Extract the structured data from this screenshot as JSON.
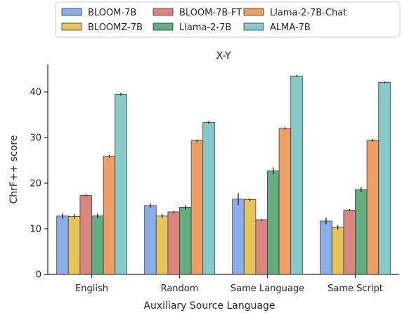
{
  "chart_data": {
    "type": "bar",
    "title": "X-Y",
    "xlabel": "Auxiliary Source Language",
    "ylabel": "ChrF++ score",
    "ylim": [
      0,
      46
    ],
    "yticks": [
      0,
      10,
      20,
      30,
      40
    ],
    "grid": false,
    "legend_position": "top",
    "categories": [
      "English",
      "Random",
      "Same Language",
      "Same Script"
    ],
    "series": [
      {
        "name": "BLOOM-7B",
        "color": "#8aaee8",
        "values": [
          12.8,
          15.1,
          16.5,
          11.7
        ],
        "errors": [
          0.6,
          0.5,
          1.3,
          0.7
        ]
      },
      {
        "name": "BLOOMZ-7B",
        "color": "#e5c55a",
        "values": [
          12.7,
          12.8,
          16.4,
          10.3
        ],
        "errors": [
          0.5,
          0.5,
          0.3,
          0.5
        ]
      },
      {
        "name": "BLOOM-7B-FT",
        "color": "#d98681",
        "values": [
          17.3,
          13.7,
          12.0,
          14.1
        ],
        "errors": [
          0.2,
          0.2,
          0.2,
          0.2
        ]
      },
      {
        "name": "Llama-2-7B",
        "color": "#62ae80",
        "values": [
          12.8,
          14.7,
          22.7,
          18.6
        ],
        "errors": [
          0.5,
          0.5,
          0.8,
          0.6
        ]
      },
      {
        "name": "Llama-2-7B-Chat",
        "color": "#ef9e65",
        "values": [
          25.9,
          29.3,
          32.0,
          29.4
        ],
        "errors": [
          0.3,
          0.3,
          0.3,
          0.3
        ]
      },
      {
        "name": "ALMA-7B",
        "color": "#87cacb",
        "values": [
          39.5,
          33.3,
          43.5,
          42.1
        ],
        "errors": [
          0.3,
          0.3,
          0.2,
          0.2
        ]
      }
    ]
  }
}
